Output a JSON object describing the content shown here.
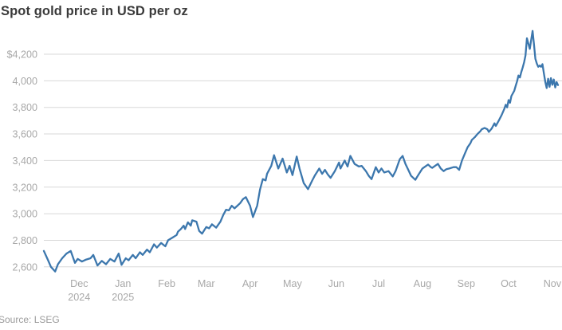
{
  "header": {
    "title": "Spot gold price in USD per oz"
  },
  "footer": {
    "source": "Source: LSEG"
  },
  "chart_data": {
    "type": "line",
    "title": "Spot gold price in USD per oz",
    "ylabel": "USD per oz",
    "source": "LSEG",
    "legend": "none",
    "grid": "horizontal",
    "line_color": "#3c77ad",
    "grid_color": "#d8d8d8",
    "axis_label_color": "#a8a8a8",
    "ylim": [
      2540,
      4430
    ],
    "x_domain": [
      "2024-11-06",
      "2025-11-05"
    ],
    "y_ticks": [
      [
        2600,
        "2,600"
      ],
      [
        2800,
        "2,800"
      ],
      [
        3000,
        "3,000"
      ],
      [
        3200,
        "3,200"
      ],
      [
        3400,
        "3,400"
      ],
      [
        3600,
        "3,600"
      ],
      [
        3800,
        "3,800"
      ],
      [
        4000,
        "4,000"
      ],
      [
        4200,
        "$4,200"
      ]
    ],
    "x_ticks": [
      {
        "date": "2024-12-01",
        "label": "Dec",
        "year": "2024"
      },
      {
        "date": "2025-01-01",
        "label": "Jan",
        "year": "2025"
      },
      {
        "date": "2025-02-01",
        "label": "Feb",
        "year": ""
      },
      {
        "date": "2025-03-01",
        "label": "Mar",
        "year": ""
      },
      {
        "date": "2025-04-01",
        "label": "Apr",
        "year": ""
      },
      {
        "date": "2025-05-01",
        "label": "May",
        "year": ""
      },
      {
        "date": "2025-06-01",
        "label": "Jun",
        "year": ""
      },
      {
        "date": "2025-07-01",
        "label": "Jul",
        "year": ""
      },
      {
        "date": "2025-08-01",
        "label": "Aug",
        "year": ""
      },
      {
        "date": "2025-09-01",
        "label": "Sep",
        "year": ""
      },
      {
        "date": "2025-10-01",
        "label": "Oct",
        "year": ""
      },
      {
        "date": "2025-11-01",
        "label": "Nov",
        "year": ""
      }
    ],
    "series": [
      {
        "name": "Spot gold price (USD per oz)",
        "points": [
          [
            "2024-11-06",
            2720
          ],
          [
            "2024-11-09",
            2650
          ],
          [
            "2024-11-11",
            2600
          ],
          [
            "2024-11-14",
            2565
          ],
          [
            "2024-11-16",
            2620
          ],
          [
            "2024-11-19",
            2665
          ],
          [
            "2024-11-22",
            2700
          ],
          [
            "2024-11-25",
            2720
          ],
          [
            "2024-11-28",
            2630
          ],
          [
            "2024-11-30",
            2660
          ],
          [
            "2024-12-03",
            2640
          ],
          [
            "2024-12-06",
            2655
          ],
          [
            "2024-12-09",
            2665
          ],
          [
            "2024-12-11",
            2690
          ],
          [
            "2024-12-14",
            2610
          ],
          [
            "2024-12-17",
            2645
          ],
          [
            "2024-12-20",
            2620
          ],
          [
            "2024-12-23",
            2660
          ],
          [
            "2024-12-26",
            2640
          ],
          [
            "2024-12-29",
            2700
          ],
          [
            "2024-12-31",
            2615
          ],
          [
            "2025-01-03",
            2665
          ],
          [
            "2025-01-05",
            2650
          ],
          [
            "2025-01-08",
            2690
          ],
          [
            "2025-01-10",
            2665
          ],
          [
            "2025-01-13",
            2710
          ],
          [
            "2025-01-15",
            2690
          ],
          [
            "2025-01-18",
            2730
          ],
          [
            "2025-01-20",
            2710
          ],
          [
            "2025-01-23",
            2770
          ],
          [
            "2025-01-25",
            2745
          ],
          [
            "2025-01-28",
            2780
          ],
          [
            "2025-01-31",
            2755
          ],
          [
            "2025-02-02",
            2800
          ],
          [
            "2025-02-05",
            2820
          ],
          [
            "2025-02-08",
            2840
          ],
          [
            "2025-02-09",
            2865
          ],
          [
            "2025-02-11",
            2885
          ],
          [
            "2025-02-13",
            2910
          ],
          [
            "2025-02-14",
            2885
          ],
          [
            "2025-02-16",
            2935
          ],
          [
            "2025-02-18",
            2910
          ],
          [
            "2025-02-19",
            2950
          ],
          [
            "2025-02-22",
            2940
          ],
          [
            "2025-02-24",
            2870
          ],
          [
            "2025-02-26",
            2850
          ],
          [
            "2025-03-01",
            2900
          ],
          [
            "2025-03-03",
            2890
          ],
          [
            "2025-03-05",
            2920
          ],
          [
            "2025-03-08",
            2895
          ],
          [
            "2025-03-11",
            2940
          ],
          [
            "2025-03-13",
            2990
          ],
          [
            "2025-03-15",
            3030
          ],
          [
            "2025-03-17",
            3025
          ],
          [
            "2025-03-19",
            3060
          ],
          [
            "2025-03-21",
            3040
          ],
          [
            "2025-03-23",
            3060
          ],
          [
            "2025-03-25",
            3080
          ],
          [
            "2025-03-27",
            3110
          ],
          [
            "2025-03-29",
            3125
          ],
          [
            "2025-04-01",
            3060
          ],
          [
            "2025-04-03",
            2975
          ],
          [
            "2025-04-06",
            3060
          ],
          [
            "2025-04-08",
            3180
          ],
          [
            "2025-04-10",
            3260
          ],
          [
            "2025-04-12",
            3250
          ],
          [
            "2025-04-13",
            3300
          ],
          [
            "2025-04-16",
            3360
          ],
          [
            "2025-04-18",
            3440
          ],
          [
            "2025-04-21",
            3340
          ],
          [
            "2025-04-24",
            3415
          ],
          [
            "2025-04-27",
            3310
          ],
          [
            "2025-04-29",
            3360
          ],
          [
            "2025-05-01",
            3290
          ],
          [
            "2025-05-04",
            3430
          ],
          [
            "2025-05-06",
            3340
          ],
          [
            "2025-05-09",
            3230
          ],
          [
            "2025-05-12",
            3185
          ],
          [
            "2025-05-15",
            3250
          ],
          [
            "2025-05-17",
            3290
          ],
          [
            "2025-05-20",
            3340
          ],
          [
            "2025-05-22",
            3300
          ],
          [
            "2025-05-24",
            3330
          ],
          [
            "2025-05-26",
            3295
          ],
          [
            "2025-05-28",
            3270
          ],
          [
            "2025-05-31",
            3320
          ],
          [
            "2025-06-03",
            3385
          ],
          [
            "2025-06-04",
            3340
          ],
          [
            "2025-06-07",
            3400
          ],
          [
            "2025-06-09",
            3355
          ],
          [
            "2025-06-11",
            3435
          ],
          [
            "2025-06-14",
            3375
          ],
          [
            "2025-06-17",
            3355
          ],
          [
            "2025-06-19",
            3360
          ],
          [
            "2025-06-22",
            3320
          ],
          [
            "2025-06-24",
            3285
          ],
          [
            "2025-06-26",
            3260
          ],
          [
            "2025-06-29",
            3350
          ],
          [
            "2025-07-01",
            3310
          ],
          [
            "2025-07-03",
            3340
          ],
          [
            "2025-07-05",
            3310
          ],
          [
            "2025-07-08",
            3320
          ],
          [
            "2025-07-11",
            3280
          ],
          [
            "2025-07-13",
            3320
          ],
          [
            "2025-07-16",
            3410
          ],
          [
            "2025-07-18",
            3435
          ],
          [
            "2025-07-20",
            3375
          ],
          [
            "2025-07-22",
            3330
          ],
          [
            "2025-07-24",
            3285
          ],
          [
            "2025-07-27",
            3255
          ],
          [
            "2025-07-29",
            3290
          ],
          [
            "2025-08-01",
            3340
          ],
          [
            "2025-08-03",
            3355
          ],
          [
            "2025-08-05",
            3370
          ],
          [
            "2025-08-07",
            3350
          ],
          [
            "2025-08-08",
            3345
          ],
          [
            "2025-08-10",
            3360
          ],
          [
            "2025-08-12",
            3375
          ],
          [
            "2025-08-14",
            3340
          ],
          [
            "2025-08-16",
            3320
          ],
          [
            "2025-08-18",
            3335
          ],
          [
            "2025-08-20",
            3340
          ],
          [
            "2025-08-23",
            3350
          ],
          [
            "2025-08-25",
            3350
          ],
          [
            "2025-08-27",
            3330
          ],
          [
            "2025-08-29",
            3400
          ],
          [
            "2025-08-31",
            3450
          ],
          [
            "2025-09-02",
            3500
          ],
          [
            "2025-09-04",
            3530
          ],
          [
            "2025-09-05",
            3555
          ],
          [
            "2025-09-07",
            3575
          ],
          [
            "2025-09-09",
            3600
          ],
          [
            "2025-09-11",
            3620
          ],
          [
            "2025-09-12",
            3635
          ],
          [
            "2025-09-14",
            3645
          ],
          [
            "2025-09-16",
            3635
          ],
          [
            "2025-09-17",
            3615
          ],
          [
            "2025-09-19",
            3640
          ],
          [
            "2025-09-21",
            3680
          ],
          [
            "2025-09-22",
            3660
          ],
          [
            "2025-09-24",
            3700
          ],
          [
            "2025-09-26",
            3740
          ],
          [
            "2025-09-28",
            3790
          ],
          [
            "2025-09-29",
            3820
          ],
          [
            "2025-09-30",
            3800
          ],
          [
            "2025-10-01",
            3855
          ],
          [
            "2025-10-02",
            3835
          ],
          [
            "2025-10-03",
            3885
          ],
          [
            "2025-10-05",
            3925
          ],
          [
            "2025-10-06",
            3960
          ],
          [
            "2025-10-07",
            3995
          ],
          [
            "2025-10-08",
            4040
          ],
          [
            "2025-10-09",
            4025
          ],
          [
            "2025-10-10",
            4065
          ],
          [
            "2025-10-11",
            4100
          ],
          [
            "2025-10-12",
            4140
          ],
          [
            "2025-10-13",
            4190
          ],
          [
            "2025-10-14",
            4320
          ],
          [
            "2025-10-16",
            4240
          ],
          [
            "2025-10-18",
            4375
          ],
          [
            "2025-10-19",
            4270
          ],
          [
            "2025-10-20",
            4165
          ],
          [
            "2025-10-21",
            4130
          ],
          [
            "2025-10-22",
            4105
          ],
          [
            "2025-10-23",
            4115
          ],
          [
            "2025-10-24",
            4105
          ],
          [
            "2025-10-25",
            4125
          ],
          [
            "2025-10-26",
            4055
          ],
          [
            "2025-10-27",
            3990
          ],
          [
            "2025-10-28",
            3945
          ],
          [
            "2025-10-29",
            4015
          ],
          [
            "2025-10-30",
            3955
          ],
          [
            "2025-10-31",
            4020
          ],
          [
            "2025-11-01",
            3970
          ],
          [
            "2025-11-02",
            4010
          ],
          [
            "2025-11-03",
            3950
          ],
          [
            "2025-11-04",
            3990
          ],
          [
            "2025-11-05",
            3968
          ]
        ]
      }
    ]
  }
}
